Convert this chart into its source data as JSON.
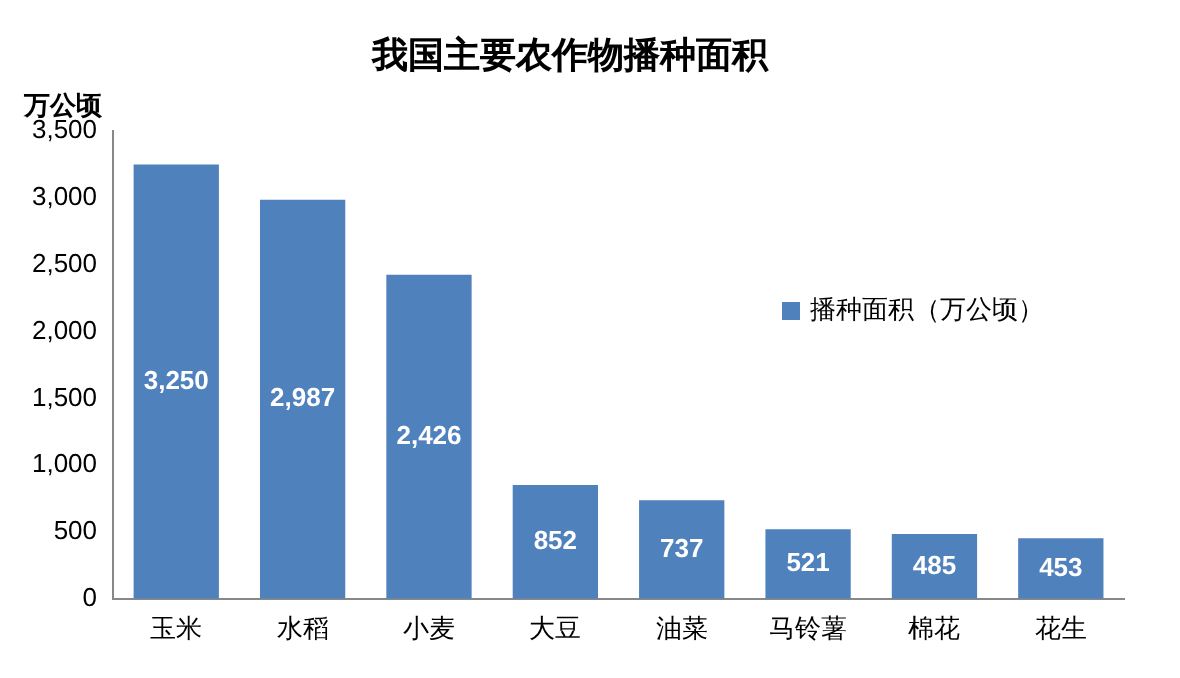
{
  "chart_data": {
    "type": "bar",
    "title": "我国主要农作物播种面积",
    "ylabel": "万公顷",
    "categories": [
      "玉米",
      "水稻",
      "小麦",
      "大豆",
      "油菜",
      "马铃薯",
      "棉花",
      "花生"
    ],
    "series": [
      {
        "name": "播种面积（万公顷）",
        "color": "#4f81bd",
        "values": [
          3250,
          2987,
          2426,
          852,
          737,
          521,
          485,
          453
        ],
        "value_labels": [
          "3,250",
          "2,987",
          "2,426",
          "852",
          "737",
          "521",
          "485",
          "453"
        ]
      }
    ],
    "ylim": [
      0,
      3500
    ],
    "yticks": [
      0,
      {
        "value": 500,
        "label": "500"
      },
      {
        "value": 1000,
        "label": "1,000"
      },
      {
        "value": 1500,
        "label": "1,500"
      },
      {
        "value": 2000,
        "label": "2,000"
      },
      {
        "value": 2500,
        "label": "2,500"
      },
      {
        "value": 3000,
        "label": "3,000"
      },
      {
        "value": 3500,
        "label": "3,500"
      }
    ],
    "grid": false,
    "legend": "right"
  }
}
